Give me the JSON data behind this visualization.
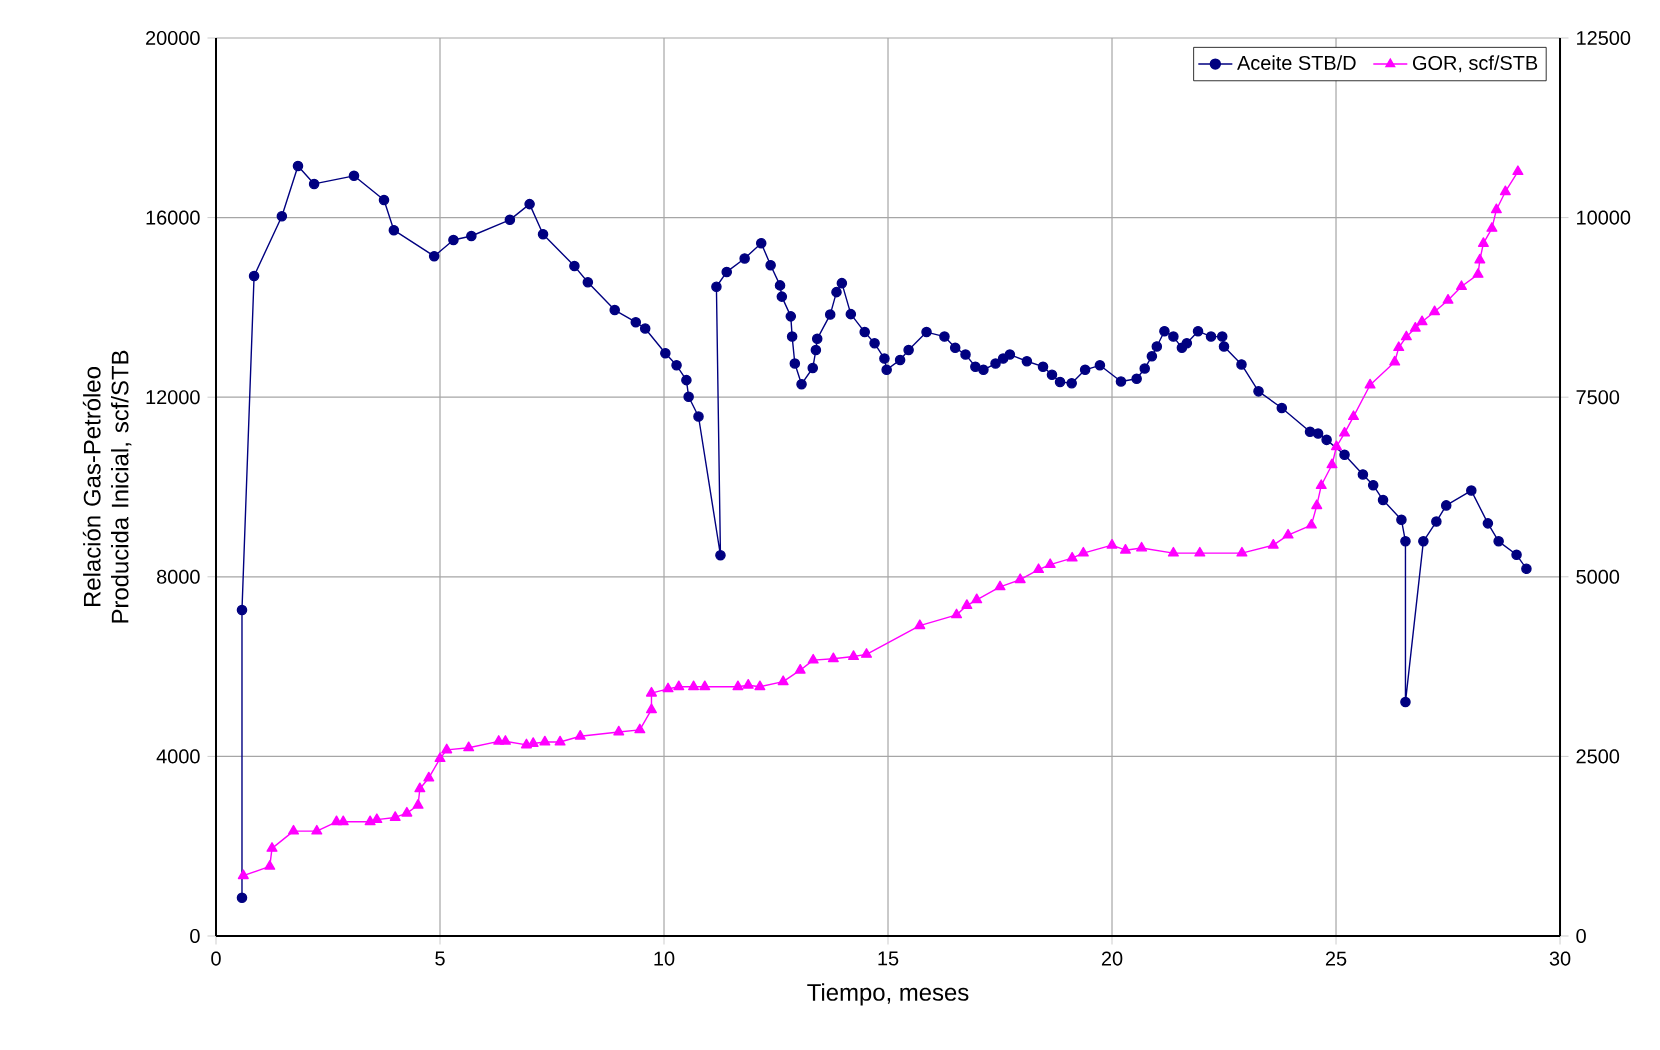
{
  "chart_data": {
    "type": "line",
    "xlabel": "Tiempo, meses",
    "ylabel": "Relación Gas-Petróleo Producida Inicial, scf/STB",
    "xlim": [
      0,
      30
    ],
    "xticks": [
      0,
      5,
      10,
      15,
      20,
      25,
      30
    ],
    "ylim": [
      0,
      20000
    ],
    "yticks": [
      0,
      4000,
      8000,
      12000,
      16000,
      20000
    ],
    "y2lim": [
      0,
      12500
    ],
    "y2ticks": [
      0,
      2500,
      5000,
      7500,
      10000,
      12500
    ],
    "grid": true,
    "legend": "top right",
    "line_style": "solid",
    "series": [
      {
        "name": "Aceite STB/D",
        "color": "#000080",
        "marker": "circle",
        "x": [
          0.58,
          0.58,
          0.85,
          1.47,
          1.83,
          2.19,
          3.08,
          3.75,
          3.97,
          4.87,
          5.3,
          5.7,
          6.56,
          7.0,
          7.3,
          8.0,
          8.3,
          8.9,
          9.37,
          9.58,
          10.03,
          10.28,
          10.5,
          10.55,
          10.77,
          11.26,
          11.17,
          11.4,
          11.8,
          12.17,
          12.38,
          12.59,
          12.63,
          12.83,
          12.86,
          12.92,
          13.07,
          13.32,
          13.39,
          13.42,
          13.71,
          13.85,
          13.97,
          14.17,
          14.48,
          14.7,
          14.92,
          14.97,
          15.27,
          15.46,
          15.86,
          16.26,
          16.5,
          16.73,
          16.95,
          17.13,
          17.4,
          17.57,
          17.72,
          18.1,
          18.46,
          18.66,
          18.84,
          19.1,
          19.4,
          19.73,
          20.2,
          20.55,
          20.73,
          20.89,
          21.0,
          21.17,
          21.37,
          21.56,
          21.67,
          21.92,
          22.21,
          22.46,
          22.5,
          22.89,
          23.27,
          23.79,
          24.42,
          24.6,
          24.79,
          25.19,
          25.6,
          25.83,
          26.05,
          26.46,
          26.55,
          26.55,
          26.95,
          27.24,
          27.46,
          28.02,
          28.39,
          28.63,
          29.03,
          29.25
        ],
        "values": [
          850,
          7260,
          14700,
          16030,
          17150,
          16750,
          16930,
          16390,
          15720,
          15140,
          15500,
          15590,
          15950,
          16300,
          15630,
          14920,
          14560,
          13940,
          13670,
          13530,
          12980,
          12710,
          12380,
          12010,
          11570,
          8480,
          14460,
          14790,
          15090,
          15430,
          14940,
          14490,
          14240,
          13800,
          13350,
          12750,
          12290,
          12650,
          13050,
          13300,
          13840,
          14340,
          14540,
          13850,
          13450,
          13200,
          12860,
          12610,
          12830,
          13050,
          13450,
          13350,
          13100,
          12950,
          12680,
          12610,
          12750,
          12860,
          12950,
          12800,
          12680,
          12500,
          12340,
          12310,
          12610,
          12710,
          12350,
          12410,
          12640,
          12910,
          13130,
          13470,
          13350,
          13100,
          13200,
          13470,
          13350,
          13350,
          13130,
          12730,
          12130,
          11760,
          11230,
          11190,
          11050,
          10720,
          10280,
          10040,
          9710,
          9270,
          8790,
          5210,
          8790,
          9230,
          9590,
          9920,
          9190,
          8790,
          8490,
          8180
        ]
      },
      {
        "name": "GOR, scf/STB",
        "color": "#ff00ff",
        "marker": "triangle",
        "axis": "y2",
        "x": [
          0.61,
          1.2,
          1.25,
          1.73,
          2.25,
          2.69,
          2.84,
          3.44,
          3.59,
          4.0,
          4.26,
          4.51,
          4.55,
          4.75,
          5.0,
          5.15,
          5.64,
          6.31,
          6.46,
          6.93,
          7.08,
          7.34,
          7.68,
          8.13,
          8.99,
          9.46,
          9.72,
          9.72,
          10.09,
          10.33,
          10.66,
          10.91,
          11.65,
          11.88,
          12.14,
          12.66,
          13.04,
          13.33,
          13.78,
          14.23,
          14.52,
          15.71,
          16.53,
          16.76,
          16.98,
          17.5,
          17.95,
          18.36,
          18.62,
          19.11,
          19.36,
          20.0,
          20.3,
          20.66,
          21.37,
          21.96,
          22.9,
          23.6,
          23.93,
          24.45,
          24.57,
          24.67,
          24.91,
          25.01,
          25.19,
          25.39,
          25.76,
          26.31,
          26.4,
          26.57,
          26.77,
          26.92,
          27.2,
          27.5,
          27.8,
          28.17,
          28.21,
          28.29,
          28.48,
          28.58,
          28.78,
          29.06
        ],
        "values": [
          840,
          970,
          1220,
          1460,
          1460,
          1590,
          1590,
          1590,
          1620,
          1650,
          1710,
          1820,
          2050,
          2200,
          2470,
          2590,
          2620,
          2710,
          2710,
          2660,
          2680,
          2700,
          2700,
          2780,
          2840,
          2870,
          3150,
          3380,
          3440,
          3470,
          3470,
          3470,
          3470,
          3490,
          3470,
          3540,
          3700,
          3840,
          3860,
          3890,
          3920,
          4320,
          4470,
          4600,
          4680,
          4860,
          4960,
          5100,
          5170,
          5260,
          5330,
          5440,
          5370,
          5400,
          5330,
          5330,
          5330,
          5440,
          5580,
          5720,
          5990,
          6270,
          6560,
          6810,
          7000,
          7230,
          7670,
          7990,
          8190,
          8340,
          8460,
          8550,
          8690,
          8850,
          9040,
          9210,
          9410,
          9640,
          9850,
          10110,
          10360,
          10640
        ]
      }
    ]
  }
}
